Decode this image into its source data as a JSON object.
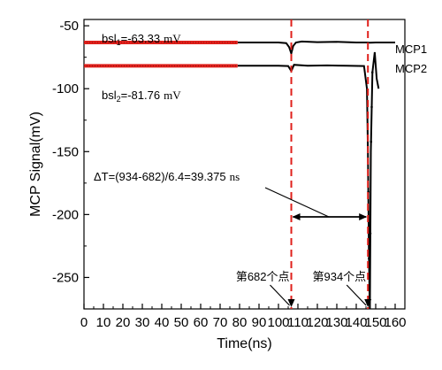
{
  "chart_data": {
    "type": "line",
    "xlabel": "Time(ns)",
    "ylabel": "MCP Signal(mV)",
    "xlim": [
      0,
      165
    ],
    "ylim": [
      -275,
      -45
    ],
    "xticks": [
      0,
      10,
      20,
      30,
      40,
      50,
      60,
      70,
      80,
      90,
      100,
      110,
      120,
      130,
      140,
      150,
      160
    ],
    "yticks": [
      -50,
      -100,
      -150,
      -200,
      -250
    ],
    "grid": false,
    "legend_placement": "inline right",
    "series": [
      {
        "name": "MCP1",
        "color": "#000000",
        "baseline_color": "#e0201b",
        "x": [
          0,
          20,
          40,
          60,
          79,
          90,
          100,
          104,
          105.5,
          106.6,
          107.6,
          109,
          112,
          120,
          130,
          140,
          145,
          147,
          150,
          155,
          160
        ],
        "y": [
          -63.3,
          -63.3,
          -63.3,
          -63.3,
          -63.3,
          -63.3,
          -63.3,
          -63.8,
          -67,
          -72,
          -66,
          -63.3,
          -62.5,
          -63,
          -62.8,
          -63.3,
          -63.3,
          -63.5,
          -63.3,
          -63.3,
          -63.3
        ]
      },
      {
        "name": "MCP2",
        "color": "#000000",
        "baseline_color": "#e0201b",
        "x": [
          0,
          20,
          40,
          60,
          79,
          90,
          100,
          105,
          106.6,
          108,
          115,
          125,
          135,
          144,
          145.5,
          146,
          146.5,
          147,
          147.5,
          148.3,
          149.5,
          150.5,
          151.5
        ],
        "y": [
          -81.8,
          -81.8,
          -81.8,
          -81.8,
          -81.8,
          -81.8,
          -81.8,
          -82,
          -86,
          -81,
          -81.8,
          -81.5,
          -81.8,
          -82,
          -100,
          -150,
          -230,
          -280,
          -150,
          -87,
          -71,
          -92,
          -100
        ]
      }
    ],
    "baseline_end_x": 79,
    "markers": [
      106.6,
      146.0
    ],
    "annotations": {
      "bsl1_prefix": "bsl",
      "bsl1_sub": "1",
      "bsl1_value": "=-63.33",
      "bsl1_unit": "mV",
      "bsl2_prefix": "bsl",
      "bsl2_sub": "2",
      "bsl2_value": "=-81.76",
      "bsl2_unit": "mV",
      "delta_text": "ΔT=(934-682)/6.4=39.375",
      "delta_unit": "ns",
      "point1": "第682个点",
      "point2": "第934个点",
      "mcp1_label": "MCP1",
      "mcp2_label": "MCP2"
    }
  }
}
